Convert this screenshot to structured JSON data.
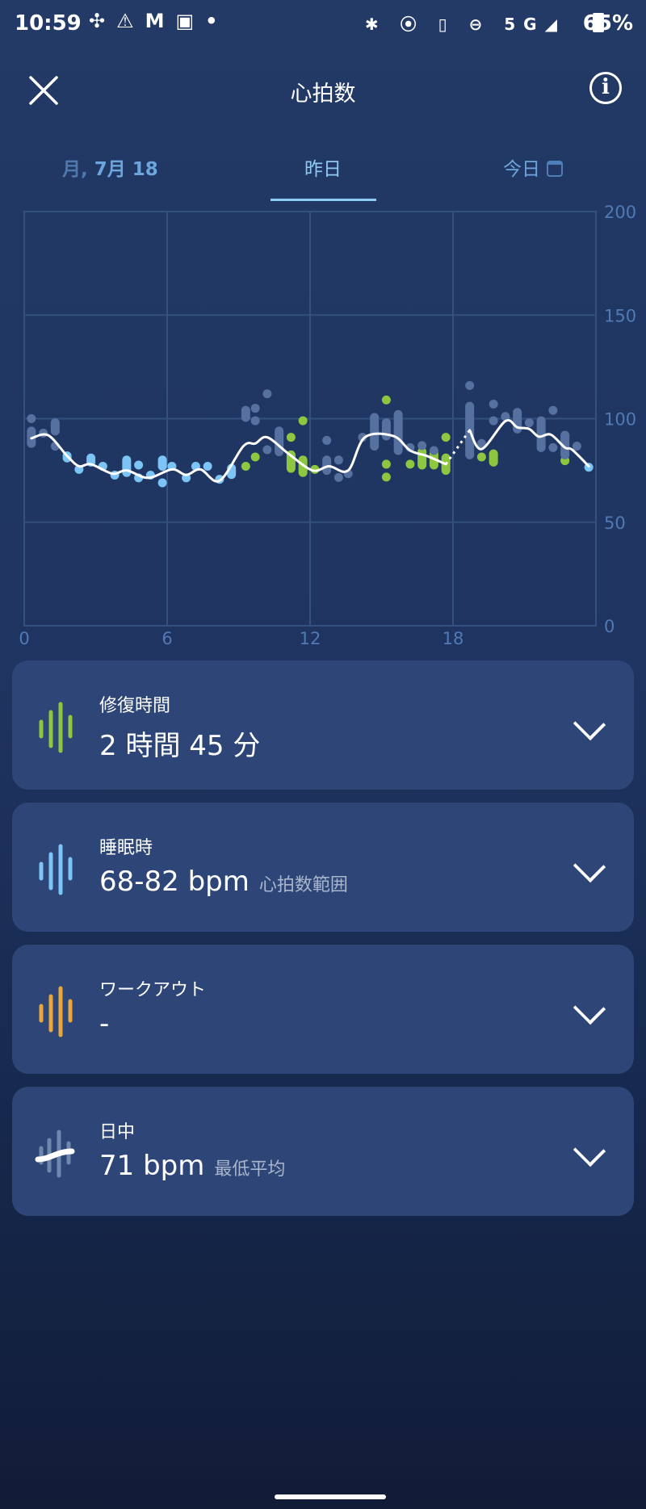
{
  "status_bar": {
    "time": "10:59",
    "left_icons": [
      "slack-icon",
      "warning-icon",
      "gmail-icon",
      "u-app-icon",
      "dot-icon"
    ],
    "right_icons": [
      "bluetooth-icon",
      "location-icon",
      "vibrate-icon",
      "do-not-disturb-icon",
      "5g-signal-icon",
      "battery-icon"
    ],
    "network": "5G",
    "battery": "65%"
  },
  "header": {
    "title": "心拍数",
    "close_icon": "close-icon",
    "info_icon": "info-icon"
  },
  "tabs": {
    "prev_dim": "月,",
    "prev": "7月 18",
    "current": "昨日",
    "next": "今日"
  },
  "colors": {
    "sleep": "#7cc4f5",
    "active": "#8dc63f",
    "other": "#56719f",
    "workout": "#e9a63b",
    "line": "#ffffff"
  },
  "chart_data": {
    "type": "scatter",
    "x_ticks": [
      "0",
      "6",
      "12",
      "18"
    ],
    "y_ticks": [
      "0",
      "50",
      "100",
      "150",
      "200"
    ],
    "xlim": [
      0,
      24
    ],
    "ylim": [
      0,
      200
    ],
    "grid": true,
    "line_segments": [
      [
        [
          0.3,
          90.5
        ],
        [
          1.0,
          92
        ],
        [
          1.8,
          82
        ],
        [
          2.3,
          77
        ],
        [
          2.8,
          78
        ],
        [
          3.7,
          73.4
        ],
        [
          4.3,
          75
        ],
        [
          5.2,
          71.4
        ],
        [
          6.2,
          75.5
        ],
        [
          6.8,
          72.8
        ],
        [
          7.4,
          75.5
        ],
        [
          8.2,
          70
        ],
        [
          9.2,
          86.7
        ],
        [
          9.7,
          88
        ],
        [
          10.2,
          91
        ],
        [
          11.1,
          83
        ],
        [
          12.1,
          75
        ],
        [
          12.8,
          77
        ],
        [
          13.6,
          75
        ],
        [
          14.3,
          91
        ],
        [
          15.5,
          91.6
        ],
        [
          16.2,
          84.6
        ],
        [
          16.9,
          82
        ],
        [
          17.7,
          78
        ]
      ],
      [
        [
          18.7,
          94.4
        ],
        [
          19.2,
          85.3
        ],
        [
          20.2,
          98.8
        ],
        [
          20.7,
          95.8
        ],
        [
          21.2,
          95
        ],
        [
          21.6,
          91.3
        ],
        [
          22.1,
          92.3
        ],
        [
          22.7,
          86
        ],
        [
          23.0,
          85
        ],
        [
          23.7,
          77
        ]
      ]
    ],
    "gap_dotted": [
      [
        17.7,
        78
      ],
      [
        18.7,
        94.4
      ]
    ],
    "points": [
      [
        1.8,
        81,
        82,
        "sleep"
      ],
      [
        2.3,
        75.5,
        75.5,
        "sleep"
      ],
      [
        2.8,
        79,
        81,
        "sleep"
      ],
      [
        3.3,
        77,
        77,
        "sleep"
      ],
      [
        3.8,
        72.7,
        72.7,
        "sleep"
      ],
      [
        4.3,
        74,
        80,
        "sleep"
      ],
      [
        4.8,
        77.6,
        77.6,
        "sleep"
      ],
      [
        4.8,
        71.4,
        71.4,
        "sleep"
      ],
      [
        5.3,
        72.7,
        72.7,
        "sleep"
      ],
      [
        5.8,
        77,
        80,
        "sleep"
      ],
      [
        5.8,
        69,
        69,
        "sleep"
      ],
      [
        6.2,
        77,
        77,
        "sleep"
      ],
      [
        6.8,
        71.4,
        71.4,
        "sleep"
      ],
      [
        7.2,
        77,
        77,
        "sleep"
      ],
      [
        7.7,
        77,
        77,
        "sleep"
      ],
      [
        8.2,
        70.7,
        70.7,
        "sleep"
      ],
      [
        8.7,
        73,
        76,
        "sleep"
      ],
      [
        23.7,
        76.5,
        76.5,
        "sleep"
      ],
      [
        9.3,
        77,
        77,
        "active"
      ],
      [
        9.7,
        81.5,
        81.5,
        "active"
      ],
      [
        11.2,
        91,
        91,
        "active"
      ],
      [
        11.2,
        76,
        82.5,
        "active"
      ],
      [
        11.7,
        99,
        99,
        "active"
      ],
      [
        11.7,
        74,
        80,
        "active"
      ],
      [
        12.2,
        75.5,
        75.5,
        "active"
      ],
      [
        15.2,
        109,
        109,
        "active"
      ],
      [
        15.2,
        78,
        78,
        "active"
      ],
      [
        15.2,
        71.8,
        71.8,
        "active"
      ],
      [
        16.2,
        78,
        78,
        "active"
      ],
      [
        16.7,
        77.6,
        84,
        "active"
      ],
      [
        17.2,
        77.6,
        83,
        "active"
      ],
      [
        17.7,
        91,
        91,
        "active"
      ],
      [
        17.7,
        75,
        81,
        "active"
      ],
      [
        19.2,
        81.5,
        81.5,
        "active"
      ],
      [
        19.7,
        79,
        83,
        "active"
      ],
      [
        22.7,
        79.7,
        79.7,
        "active"
      ],
      [
        0.3,
        100,
        100,
        "other"
      ],
      [
        0.3,
        88,
        94,
        "other"
      ],
      [
        0.8,
        93,
        93,
        "other"
      ],
      [
        1.3,
        94,
        98,
        "other"
      ],
      [
        1.3,
        86.7,
        86.7,
        "other"
      ],
      [
        9.3,
        100.6,
        104,
        "other"
      ],
      [
        9.7,
        105,
        105,
        "other"
      ],
      [
        9.7,
        99,
        99,
        "other"
      ],
      [
        10.2,
        112,
        112,
        "other"
      ],
      [
        10.2,
        85,
        85,
        "other"
      ],
      [
        10.7,
        84,
        94,
        "other"
      ],
      [
        12.7,
        89.5,
        89.5,
        "other"
      ],
      [
        12.7,
        75,
        80,
        "other"
      ],
      [
        13.2,
        80,
        80,
        "other"
      ],
      [
        13.2,
        71.6,
        71.6,
        "other"
      ],
      [
        13.6,
        73.4,
        73.4,
        "other"
      ],
      [
        14.2,
        91,
        91,
        "other"
      ],
      [
        14.7,
        86.7,
        100.6,
        "other"
      ],
      [
        15.2,
        91.6,
        98,
        "other"
      ],
      [
        15.7,
        84.6,
        102,
        "other"
      ],
      [
        16.2,
        86,
        86,
        "other"
      ],
      [
        16.7,
        87,
        87,
        "other"
      ],
      [
        17.2,
        84.6,
        84.6,
        "other"
      ],
      [
        18.7,
        116,
        116,
        "other"
      ],
      [
        18.7,
        82.5,
        106,
        "other"
      ],
      [
        19.2,
        88,
        88,
        "other"
      ],
      [
        19.7,
        107,
        107,
        "other"
      ],
      [
        19.7,
        99,
        99,
        "other"
      ],
      [
        20.2,
        101,
        101,
        "other"
      ],
      [
        20.7,
        95,
        103,
        "other"
      ],
      [
        21.2,
        98,
        98,
        "other"
      ],
      [
        21.7,
        86,
        99,
        "other"
      ],
      [
        22.2,
        104,
        104,
        "other"
      ],
      [
        22.2,
        86,
        86,
        "other"
      ],
      [
        22.7,
        82.5,
        92,
        "other"
      ],
      [
        23.2,
        86.7,
        86.7,
        "other"
      ]
    ]
  },
  "cards": [
    {
      "label": "修復時間",
      "value": "2 時間 45 分",
      "sub": "",
      "icon": "recovery-wave-icon",
      "color": "#8dc63f"
    },
    {
      "label": "睡眠時",
      "value": "68-82 bpm",
      "sub": "心拍数範囲",
      "icon": "sleep-wave-icon",
      "color": "#7cc4f5"
    },
    {
      "label": "ワークアウト",
      "value": "-",
      "sub": "",
      "icon": "workout-wave-icon",
      "color": "#e9a63b"
    },
    {
      "label": "日中",
      "value": "71 bpm",
      "sub": "最低平均",
      "icon": "daytime-wave-icon",
      "color": "#6f86ad"
    }
  ]
}
